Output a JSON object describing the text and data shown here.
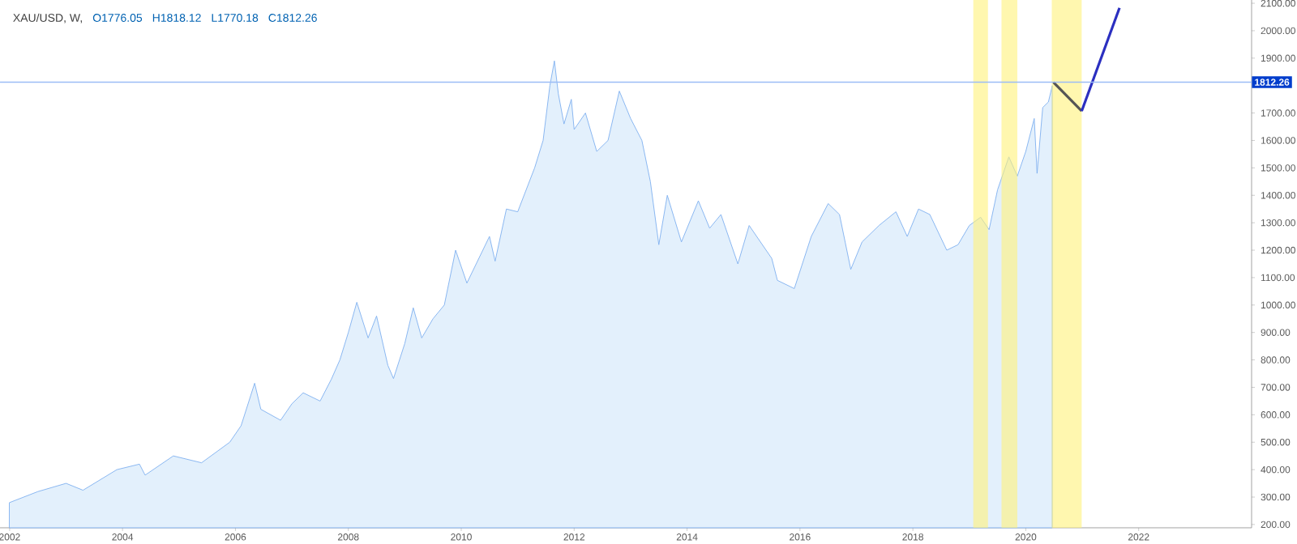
{
  "chart_data": {
    "type": "area",
    "title": "XAU/USD, W,",
    "annotations": [
      "O1776.05",
      "H1818.12",
      "L1770.18",
      "C1812.26"
    ],
    "xlim": [
      2001.83,
      2024.0
    ],
    "ylim": [
      188,
      2112
    ],
    "xticks": [
      2002,
      2004,
      2006,
      2008,
      2010,
      2012,
      2014,
      2016,
      2018,
      2020,
      2022
    ],
    "yticks": [
      {
        "value": 200,
        "label": "200.00"
      },
      {
        "value": 300,
        "label": "300.00"
      },
      {
        "value": 400,
        "label": "400.00"
      },
      {
        "value": 500,
        "label": "500.00"
      },
      {
        "value": 600,
        "label": "600.00"
      },
      {
        "value": 700,
        "label": "700.00"
      },
      {
        "value": 800,
        "label": "800.00"
      },
      {
        "value": 900,
        "label": "900.00"
      },
      {
        "value": 1000,
        "label": "1000.00"
      },
      {
        "value": 1100,
        "label": "1100.00"
      },
      {
        "value": 1200,
        "label": "1200.00"
      },
      {
        "value": 1300,
        "label": "1300.00"
      },
      {
        "value": 1400,
        "label": "1400.00"
      },
      {
        "value": 1500,
        "label": "1500.00"
      },
      {
        "value": 1600,
        "label": "1600.00"
      },
      {
        "value": 1700,
        "label": "1700.00"
      },
      {
        "value": 1900,
        "label": "1900.00"
      },
      {
        "value": 2000,
        "label": "2000.00"
      },
      {
        "value": 2100,
        "label": "2100.00"
      }
    ],
    "series": [
      {
        "color": "#7fb0ef",
        "x": [
          2002.0,
          2002.5,
          2003.0,
          2003.3,
          2003.9,
          2004.3,
          2004.4,
          2004.9,
          2005.4,
          2005.9,
          2006.1,
          2006.34,
          2006.45,
          2006.8,
          2007.0,
          2007.2,
          2007.5,
          2007.7,
          2007.85,
          2008.0,
          2008.15,
          2008.35,
          2008.5,
          2008.7,
          2008.8,
          2009.0,
          2009.15,
          2009.3,
          2009.5,
          2009.7,
          2009.9,
          2010.1,
          2010.5,
          2010.6,
          2010.8,
          2011.0,
          2011.3,
          2011.45,
          2011.57,
          2011.65,
          2011.72,
          2011.82,
          2011.95,
          2012.0,
          2012.2,
          2012.4,
          2012.6,
          2012.8,
          2013.0,
          2013.2,
          2013.35,
          2013.5,
          2013.65,
          2013.9,
          2014.2,
          2014.4,
          2014.6,
          2014.9,
          2015.1,
          2015.5,
          2015.6,
          2015.9,
          2016.2,
          2016.5,
          2016.7,
          2016.9,
          2017.1,
          2017.4,
          2017.7,
          2017.9,
          2018.1,
          2018.3,
          2018.6,
          2018.8,
          2019.0,
          2019.2,
          2019.35,
          2019.5,
          2019.7,
          2019.85,
          2020.0,
          2020.15,
          2020.2,
          2020.3,
          2020.4,
          2020.47
        ],
        "values": [
          280,
          320,
          350,
          325,
          400,
          420,
          380,
          450,
          425,
          500,
          560,
          715,
          620,
          580,
          640,
          680,
          650,
          730,
          800,
          900,
          1010,
          880,
          960,
          780,
          732,
          860,
          990,
          880,
          950,
          1000,
          1200,
          1080,
          1250,
          1160,
          1350,
          1340,
          1500,
          1600,
          1800,
          1890,
          1770,
          1660,
          1750,
          1640,
          1700,
          1560,
          1600,
          1780,
          1680,
          1600,
          1450,
          1220,
          1400,
          1230,
          1380,
          1280,
          1330,
          1150,
          1290,
          1170,
          1090,
          1060,
          1250,
          1370,
          1330,
          1130,
          1230,
          1290,
          1340,
          1250,
          1350,
          1330,
          1200,
          1220,
          1290,
          1320,
          1275,
          1420,
          1540,
          1470,
          1560,
          1680,
          1480,
          1720,
          1740,
          1800
        ]
      },
      {
        "type": "line",
        "color": "#555555",
        "x": [
          2020.49,
          2020.99
        ],
        "values": [
          1812,
          1707
        ]
      },
      {
        "type": "line",
        "color": "#2b2fc0",
        "x": [
          2020.99,
          2021.66
        ],
        "values": [
          1707,
          2083
        ]
      }
    ],
    "ref_lines": [
      {
        "axis": "y",
        "value": 1812.26,
        "label": "1812.26",
        "color": "#9bbcf5"
      }
    ],
    "bands": [
      {
        "axis": "x",
        "from": 2019.07,
        "to": 2019.33,
        "color": "#fff27a"
      },
      {
        "axis": "x",
        "from": 2019.57,
        "to": 2019.85,
        "color": "#fff27a"
      },
      {
        "axis": "x",
        "from": 2020.46,
        "to": 2020.99,
        "color": "#fff27a"
      }
    ],
    "grid": false
  }
}
